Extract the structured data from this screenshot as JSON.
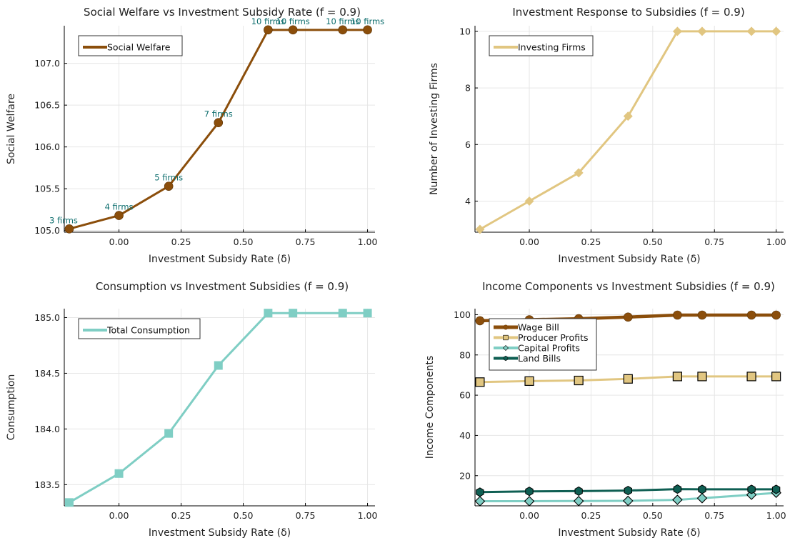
{
  "colors": {
    "brown": "#8B4E0B",
    "tan": "#E1C681",
    "aqua": "#7FCEC4",
    "teal": "#0F5F53",
    "annotation": "#0E6E6E",
    "grid": "#E6E6E6",
    "axis": "#000000"
  },
  "chart_data": [
    {
      "type": "line",
      "title": "Social Welfare vs Investment Subsidy Rate (f = 0.9)",
      "xlabel": "Investment Subsidy Rate (δ)",
      "ylabel": "Social Welfare",
      "x": [
        -0.2,
        0.0,
        0.2,
        0.4,
        0.6,
        0.7,
        0.9,
        1.0
      ],
      "xlim": [
        -0.22,
        1.03
      ],
      "ylim": [
        104.98,
        107.45
      ],
      "xticks": [
        0.0,
        0.25,
        0.5,
        0.75,
        1.0
      ],
      "xtick_labels": [
        "0.00",
        "0.25",
        "0.50",
        "0.75",
        "1.00"
      ],
      "yticks": [
        105.0,
        105.5,
        106.0,
        106.5,
        107.0
      ],
      "ytick_labels": [
        "105.0",
        "105.5",
        "106.0",
        "106.5",
        "107.0"
      ],
      "grid": true,
      "legend_position": "top-left",
      "series": [
        {
          "name": "Social Welfare",
          "color": "#8B4E0B",
          "marker": "circle",
          "values": [
            105.02,
            105.18,
            105.53,
            106.29,
            107.4,
            107.4,
            107.4,
            107.4
          ]
        }
      ],
      "annotations": [
        "3 firms",
        "4 firms",
        "5 firms",
        "7 firms",
        "10 firms",
        "10 firms",
        "10 firms",
        "10 firms"
      ]
    },
    {
      "type": "line",
      "title": "Investment Response to Subsidies (f = 0.9)",
      "xlabel": "Investment Subsidy Rate (δ)",
      "ylabel": "Number of Investing Firms",
      "x": [
        -0.2,
        0.0,
        0.2,
        0.4,
        0.6,
        0.7,
        0.9,
        1.0
      ],
      "xlim": [
        -0.22,
        1.03
      ],
      "ylim": [
        2.9,
        10.2
      ],
      "xticks": [
        0.0,
        0.25,
        0.5,
        0.75,
        1.0
      ],
      "xtick_labels": [
        "0.00",
        "0.25",
        "0.50",
        "0.75",
        "1.00"
      ],
      "yticks": [
        4,
        6,
        8,
        10
      ],
      "ytick_labels": [
        "4",
        "6",
        "8",
        "10"
      ],
      "grid": true,
      "legend_position": "top-left",
      "series": [
        {
          "name": "Investing Firms",
          "color": "#E1C681",
          "marker": "diamond",
          "values": [
            3,
            4,
            5,
            7,
            10,
            10,
            10,
            10
          ]
        }
      ]
    },
    {
      "type": "line",
      "title": "Consumption vs Investment Subsidies (f = 0.9)",
      "xlabel": "Investment Subsidy Rate (δ)",
      "ylabel": "Consumption",
      "x": [
        -0.2,
        0.0,
        0.2,
        0.4,
        0.6,
        0.7,
        0.9,
        1.0
      ],
      "xlim": [
        -0.22,
        1.03
      ],
      "ylim": [
        183.31,
        185.08
      ],
      "xticks": [
        0.0,
        0.25,
        0.5,
        0.75,
        1.0
      ],
      "xtick_labels": [
        "0.00",
        "0.25",
        "0.50",
        "0.75",
        "1.00"
      ],
      "yticks": [
        183.5,
        184.0,
        184.5,
        185.0
      ],
      "ytick_labels": [
        "183.5",
        "184.0",
        "184.5",
        "185.0"
      ],
      "grid": true,
      "legend_position": "top-left",
      "series": [
        {
          "name": "Total Consumption",
          "color": "#7FCEC4",
          "marker": "square",
          "values": [
            183.34,
            183.6,
            183.96,
            184.57,
            185.04,
            185.04,
            185.04,
            185.04
          ]
        }
      ]
    },
    {
      "type": "line",
      "title": "Income Components vs Investment Subsidies (f = 0.9)",
      "xlabel": "Investment Subsidy Rate (δ)",
      "ylabel": "Income Components",
      "x": [
        -0.2,
        0.0,
        0.2,
        0.4,
        0.6,
        0.7,
        0.9,
        1.0
      ],
      "xlim": [
        -0.22,
        1.03
      ],
      "ylim": [
        5,
        103
      ],
      "xticks": [
        0.0,
        0.25,
        0.5,
        0.75,
        1.0
      ],
      "xtick_labels": [
        "0.00",
        "0.25",
        "0.50",
        "0.75",
        "1.00"
      ],
      "yticks": [
        20,
        40,
        60,
        80,
        100
      ],
      "ytick_labels": [
        "20",
        "40",
        "60",
        "80",
        "100"
      ],
      "grid": true,
      "legend_position": "top-left",
      "series": [
        {
          "name": "Wage Bill",
          "color": "#8B4E0B",
          "marker": "circle",
          "values": [
            97.0,
            97.5,
            98.0,
            98.8,
            99.8,
            99.8,
            99.8,
            99.8
          ]
        },
        {
          "name": "Producer Profits",
          "color": "#E1C681",
          "marker": "square",
          "values": [
            66.5,
            67.0,
            67.3,
            68.1,
            69.3,
            69.3,
            69.3,
            69.3
          ]
        },
        {
          "name": "Capital Profits",
          "color": "#7FCEC4",
          "marker": "diamond",
          "values": [
            7.3,
            7.3,
            7.4,
            7.5,
            8.0,
            8.8,
            10.5,
            11.5
          ]
        },
        {
          "name": "Land Bills",
          "color": "#0F5F53",
          "marker": "hexagon",
          "values": [
            11.8,
            12.2,
            12.3,
            12.6,
            13.3,
            13.2,
            13.2,
            13.2
          ]
        }
      ]
    }
  ]
}
